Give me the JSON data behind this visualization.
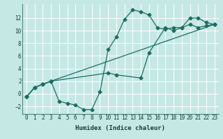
{
  "xlabel": "Humidex (Indice chaleur)",
  "bg_color": "#c5e8e5",
  "grid_color": "#ffffff",
  "line_color": "#1a6e62",
  "xlim": [
    -0.5,
    23.5
  ],
  "ylim": [
    -3.2,
    14.2
  ],
  "xticks": [
    0,
    1,
    2,
    3,
    4,
    5,
    6,
    7,
    8,
    9,
    10,
    11,
    12,
    13,
    14,
    15,
    16,
    17,
    18,
    19,
    20,
    21,
    22,
    23
  ],
  "yticks": [
    -2,
    0,
    2,
    4,
    6,
    8,
    10,
    12
  ],
  "line1_x": [
    0,
    1,
    2,
    3,
    4,
    5,
    6,
    7,
    8,
    9,
    10,
    11,
    12,
    13,
    14,
    15,
    16,
    17,
    18,
    19,
    20,
    21,
    22,
    23
  ],
  "line1_y": [
    -0.5,
    1.0,
    1.5,
    2.0,
    -1.2,
    -1.5,
    -1.8,
    -2.5,
    -2.5,
    0.3,
    7.0,
    9.0,
    11.8,
    13.3,
    13.0,
    12.5,
    10.5,
    10.2,
    10.5,
    10.5,
    12.0,
    12.0,
    11.3,
    11.0
  ],
  "line2_x": [
    0,
    1,
    2,
    3,
    10,
    11,
    14,
    15,
    17,
    18,
    19,
    20,
    21,
    22,
    23
  ],
  "line2_y": [
    -0.5,
    1.0,
    1.5,
    2.0,
    3.3,
    3.0,
    2.5,
    6.5,
    10.5,
    10.0,
    10.5,
    11.0,
    10.5,
    10.8,
    11.0
  ],
  "line3_x": [
    0,
    1,
    2,
    3,
    23
  ],
  "line3_y": [
    -0.5,
    1.0,
    1.5,
    2.0,
    11.0
  ]
}
